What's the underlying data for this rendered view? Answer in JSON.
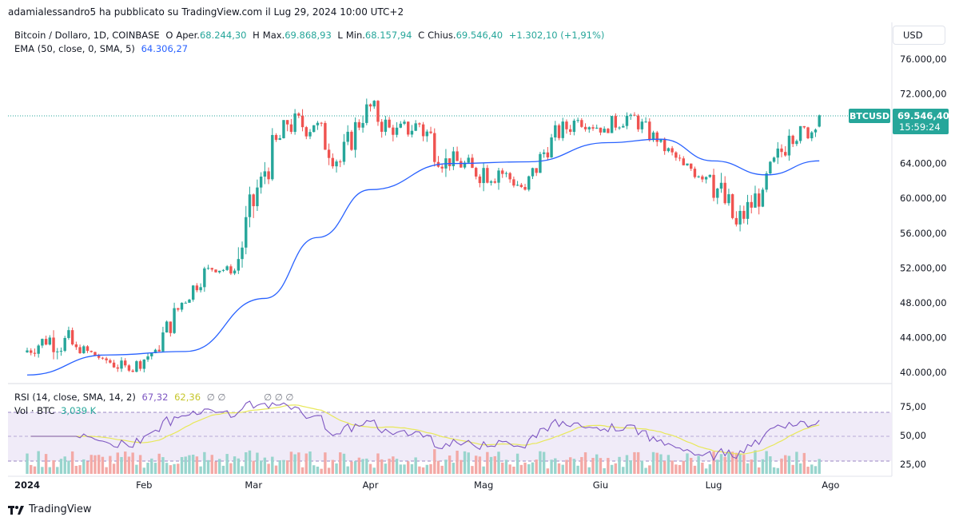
{
  "header": {
    "attribution": "adamialessandro5 ha pubblicato su TradingView.com il Lug 29, 2024 10:00 UTC+2"
  },
  "legend": {
    "symbol": "Bitcoin / Dollaro, 1D, COINBASE",
    "o_label": "O",
    "o_prefix": "Aper.",
    "o_value": "68.244,30",
    "h_label": "H",
    "h_prefix": "Max.",
    "h_value": "69.868,93",
    "l_label": "L",
    "l_prefix": "Min.",
    "l_value": "68.157,94",
    "c_label": "C",
    "c_prefix": "Chius.",
    "c_value": "69.546,40",
    "change": "+1.302,10 (+1,91%)",
    "ema_label": "EMA (50, close, 0, SMA, 5)",
    "ema_value": "64.306,27",
    "rsi_label": "RSI (14, close, SMA, 14, 2)",
    "rsi_value": "67,32",
    "rsi_ma_value": "62,36",
    "rsi_extra": "∅ ∅",
    "rsi_extra2": "∅ ∅ ∅",
    "vol_label": "Vol · BTC",
    "vol_value": "3,039 K"
  },
  "currency_button": "USD",
  "price_tag": {
    "symbol": "BTCUSD",
    "price": "69.546,40",
    "countdown": "15:59:24"
  },
  "footer": {
    "brand": "TradingView"
  },
  "colors": {
    "up": "#26a69a",
    "down": "#ef5350",
    "ema": "#2962ff",
    "rsi": "#7e57c2",
    "rsi_ma": "#e8e85a",
    "rsi_band": "#ece6f5",
    "vol_up": "#98d4cd",
    "vol_down": "#f3a9a6"
  },
  "chart_data": {
    "type": "candlestick",
    "title": "Bitcoin / Dollaro, 1D, COINBASE",
    "price_ticks": [
      "76.000,00",
      "72.000,00",
      "68.000,00",
      "64.000,00",
      "60.000,00",
      "56.000,00",
      "52.000,00",
      "48.000,00",
      "44.000,00",
      "40.000,00"
    ],
    "price_ylim": [
      39200,
      77500
    ],
    "rsi_ticks": [
      "75,00",
      "50,00",
      "25,00"
    ],
    "x_ticks": [
      "2024",
      "Feb",
      "Mar",
      "Apr",
      "Mag",
      "Giu",
      "Lug",
      "Ago"
    ],
    "x_tick_dates": [
      "2024-01-01",
      "2024-02-01",
      "2024-03-01",
      "2024-04-01",
      "2024-05-01",
      "2024-06-01",
      "2024-07-01",
      "2024-08-01"
    ],
    "weekly_closes": [
      {
        "date": "2024-01-01",
        "o": 42300,
        "h": 45500,
        "l": 40800,
        "c": 44000
      },
      {
        "date": "2024-01-08",
        "o": 44000,
        "h": 49000,
        "l": 41500,
        "c": 42900
      },
      {
        "date": "2024-01-15",
        "o": 42900,
        "h": 43300,
        "l": 40600,
        "c": 41600
      },
      {
        "date": "2024-01-22",
        "o": 41600,
        "h": 42200,
        "l": 38600,
        "c": 40200
      },
      {
        "date": "2024-01-29",
        "o": 40200,
        "h": 43700,
        "l": 40000,
        "c": 42600
      },
      {
        "date": "2024-02-05",
        "o": 42600,
        "h": 48600,
        "l": 42400,
        "c": 48000
      },
      {
        "date": "2024-02-12",
        "o": 48000,
        "h": 52800,
        "l": 48000,
        "c": 52000
      },
      {
        "date": "2024-02-19",
        "o": 52000,
        "h": 52800,
        "l": 50600,
        "c": 51700
      },
      {
        "date": "2024-02-26",
        "o": 51700,
        "h": 63000,
        "l": 51300,
        "c": 62500
      },
      {
        "date": "2024-03-04",
        "o": 62500,
        "h": 69000,
        "l": 59000,
        "c": 68500
      },
      {
        "date": "2024-03-11",
        "o": 68500,
        "h": 73800,
        "l": 66800,
        "c": 68400
      },
      {
        "date": "2024-03-18",
        "o": 68400,
        "h": 68900,
        "l": 60800,
        "c": 64200
      },
      {
        "date": "2024-03-25",
        "o": 64200,
        "h": 71600,
        "l": 63800,
        "c": 70800
      },
      {
        "date": "2024-04-01",
        "o": 70800,
        "h": 71300,
        "l": 64500,
        "c": 67300
      },
      {
        "date": "2024-04-08",
        "o": 67300,
        "h": 72700,
        "l": 67000,
        "c": 68500
      },
      {
        "date": "2024-04-15",
        "o": 68500,
        "h": 69000,
        "l": 59700,
        "c": 64600
      },
      {
        "date": "2024-04-22",
        "o": 64600,
        "h": 67200,
        "l": 62200,
        "c": 63500
      },
      {
        "date": "2024-04-29",
        "o": 63500,
        "h": 64800,
        "l": 56500,
        "c": 63200
      },
      {
        "date": "2024-05-06",
        "o": 63200,
        "h": 64500,
        "l": 60200,
        "c": 61000
      },
      {
        "date": "2024-05-13",
        "o": 61000,
        "h": 67400,
        "l": 60800,
        "c": 67000
      },
      {
        "date": "2024-05-20",
        "o": 67000,
        "h": 71900,
        "l": 66600,
        "c": 69000
      },
      {
        "date": "2024-05-27",
        "o": 69000,
        "h": 70200,
        "l": 66700,
        "c": 68000
      },
      {
        "date": "2024-06-03",
        "o": 68000,
        "h": 72000,
        "l": 67500,
        "c": 69600
      },
      {
        "date": "2024-06-10",
        "o": 69600,
        "h": 69900,
        "l": 65200,
        "c": 66500
      },
      {
        "date": "2024-06-17",
        "o": 66500,
        "h": 67000,
        "l": 63400,
        "c": 63800
      },
      {
        "date": "2024-06-24",
        "o": 63800,
        "h": 64000,
        "l": 58400,
        "c": 62700
      },
      {
        "date": "2024-07-01",
        "o": 62700,
        "h": 63500,
        "l": 53500,
        "c": 57000
      },
      {
        "date": "2024-07-08",
        "o": 57000,
        "h": 62200,
        "l": 54600,
        "c": 61000
      },
      {
        "date": "2024-07-15",
        "o": 61000,
        "h": 68300,
        "l": 60700,
        "c": 67200
      },
      {
        "date": "2024-07-22",
        "o": 67200,
        "h": 68300,
        "l": 63600,
        "c": 67900
      },
      {
        "date": "2024-07-29",
        "o": 68244.3,
        "h": 69868.93,
        "l": 68157.94,
        "c": 69546.4
      }
    ],
    "ema_last": 64306.27,
    "ema_ticks": [
      {
        "date": "2024-01-01",
        "v": 39700
      },
      {
        "date": "2024-01-22",
        "v": 42000
      },
      {
        "date": "2024-02-12",
        "v": 42400
      },
      {
        "date": "2024-03-04",
        "v": 48500
      },
      {
        "date": "2024-03-18",
        "v": 55500
      },
      {
        "date": "2024-04-01",
        "v": 61000
      },
      {
        "date": "2024-04-22",
        "v": 64000
      },
      {
        "date": "2024-05-13",
        "v": 64200
      },
      {
        "date": "2024-06-03",
        "v": 66400
      },
      {
        "date": "2024-06-17",
        "v": 66800
      },
      {
        "date": "2024-07-01",
        "v": 64300
      },
      {
        "date": "2024-07-15",
        "v": 62700
      },
      {
        "date": "2024-07-29",
        "v": 64306
      }
    ],
    "rsi_last": 67.32,
    "rsi_ma_last": 62.36,
    "volume_last": "3,039 K"
  }
}
